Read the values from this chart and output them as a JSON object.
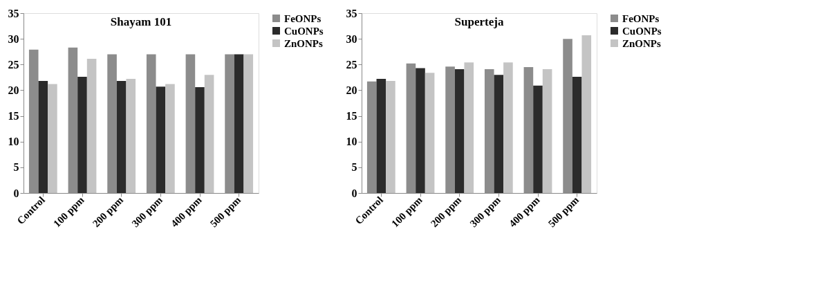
{
  "chart_data": [
    {
      "type": "bar",
      "title": "Shayam 101",
      "categories": [
        "Control",
        "100 ppm",
        "200 ppm",
        "300 ppm",
        "400 ppm",
        "500 ppm"
      ],
      "series": [
        {
          "name": "FeONPs",
          "color": "#8c8c8c",
          "values": [
            27.9,
            28.3,
            27.0,
            27.0,
            27.0,
            27.0
          ]
        },
        {
          "name": "CuONPs",
          "color": "#2b2b2b",
          "values": [
            21.8,
            22.6,
            21.8,
            20.7,
            20.6,
            27.0
          ]
        },
        {
          "name": "ZnONPs",
          "color": "#c4c4c4",
          "values": [
            21.2,
            26.1,
            22.2,
            21.2,
            23.0,
            27.0
          ]
        }
      ],
      "ylim": [
        0,
        35
      ],
      "yticks": [
        0,
        5,
        10,
        15,
        20,
        25,
        30,
        35
      ],
      "legend": "right",
      "grid": false
    },
    {
      "type": "bar",
      "title": "Superteja",
      "categories": [
        "Control",
        "100 ppm",
        "200 ppm",
        "300 ppm",
        "400 ppm",
        "500 ppm"
      ],
      "series": [
        {
          "name": "FeONPs",
          "color": "#8c8c8c",
          "values": [
            21.7,
            25.2,
            24.6,
            24.1,
            24.5,
            30.0
          ]
        },
        {
          "name": "CuONPs",
          "color": "#2b2b2b",
          "values": [
            22.2,
            24.3,
            24.1,
            23.0,
            20.9,
            22.6
          ]
        },
        {
          "name": "ZnONPs",
          "color": "#c4c4c4",
          "values": [
            21.8,
            23.4,
            25.4,
            25.4,
            24.1,
            30.7
          ]
        }
      ],
      "ylim": [
        0,
        35
      ],
      "yticks": [
        0,
        5,
        10,
        15,
        20,
        25,
        30,
        35
      ],
      "legend": "right",
      "grid": false
    }
  ]
}
